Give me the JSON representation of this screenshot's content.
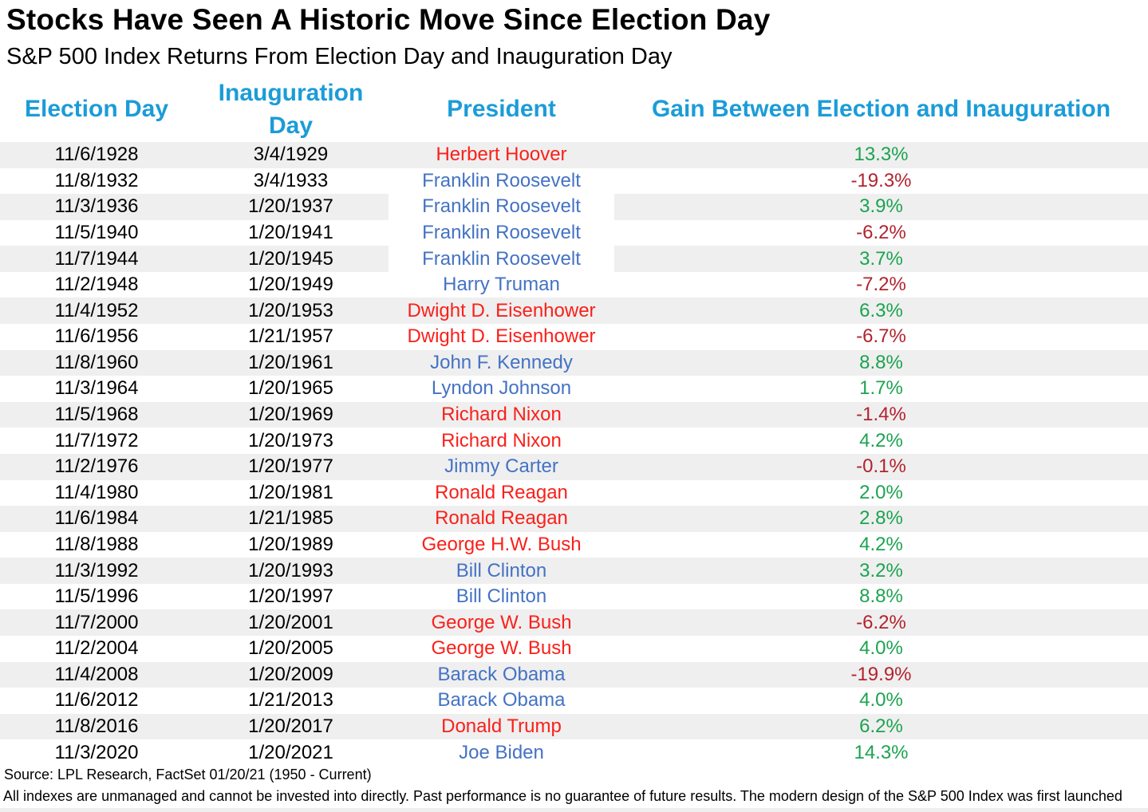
{
  "header": {
    "title": "Stocks Have Seen A Historic Move Since Election Day",
    "subtitle": "S&P 500 Index Returns From Election Day and Inauguration Day"
  },
  "footer": {
    "source": "Source: LPL Research, FactSet 01/20/21 (1950 - Current)",
    "disclaimer": "All indexes are unmanaged and cannot be invested into directly. Past performance is no guarantee of future results. The modern design of the S&P 500 Index was first launched"
  },
  "colors": {
    "header_blue": "#1B9CD8",
    "democrat_blue": "#4472C4",
    "republican_red": "#FA201A",
    "positive_green": "#1CA350",
    "negative_red": "#B2232E",
    "stripe_gray": "#EFEFEF"
  },
  "chart_data": {
    "type": "table",
    "title": "Stocks Have Seen A Historic Move Since Election Day",
    "subtitle": "S&P 500 Index Returns From Election Day and Inauguration Day",
    "columns": [
      "Election Day",
      "Inauguration Day",
      "President",
      "Gain Between Election and Inauguration"
    ],
    "legend_note": "President names colored red (Republican) or blue (Democrat); gains colored green (positive) or dark red (negative)",
    "rows": [
      {
        "election_day": "11/6/1928",
        "inauguration_day": "3/4/1929",
        "president": "Herbert Hoover",
        "name_color": "red",
        "gain_pct": 13.3,
        "gain_label": "13.3%"
      },
      {
        "election_day": "11/8/1932",
        "inauguration_day": "3/4/1933",
        "president": "Franklin Roosevelt",
        "name_color": "blue",
        "gain_pct": -19.3,
        "gain_label": "-19.3%"
      },
      {
        "election_day": "11/3/1936",
        "inauguration_day": "1/20/1937",
        "president": "Franklin Roosevelt",
        "name_color": "blue",
        "gain_pct": 3.9,
        "gain_label": "3.9%",
        "president_cell_white": true
      },
      {
        "election_day": "11/5/1940",
        "inauguration_day": "1/20/1941",
        "president": "Franklin Roosevelt",
        "name_color": "blue",
        "gain_pct": -6.2,
        "gain_label": "-6.2%"
      },
      {
        "election_day": "11/7/1944",
        "inauguration_day": "1/20/1945",
        "president": "Franklin Roosevelt",
        "name_color": "blue",
        "gain_pct": 3.7,
        "gain_label": "3.7%",
        "president_cell_white": true
      },
      {
        "election_day": "11/2/1948",
        "inauguration_day": "1/20/1949",
        "president": "Harry Truman",
        "name_color": "blue",
        "gain_pct": -7.2,
        "gain_label": "-7.2%"
      },
      {
        "election_day": "11/4/1952",
        "inauguration_day": "1/20/1953",
        "president": "Dwight D. Eisenhower",
        "name_color": "red",
        "gain_pct": 6.3,
        "gain_label": "6.3%"
      },
      {
        "election_day": "11/6/1956",
        "inauguration_day": "1/21/1957",
        "president": "Dwight D. Eisenhower",
        "name_color": "red",
        "gain_pct": -6.7,
        "gain_label": "-6.7%"
      },
      {
        "election_day": "11/8/1960",
        "inauguration_day": "1/20/1961",
        "president": "John F. Kennedy",
        "name_color": "blue",
        "gain_pct": 8.8,
        "gain_label": "8.8%"
      },
      {
        "election_day": "11/3/1964",
        "inauguration_day": "1/20/1965",
        "president": "Lyndon Johnson",
        "name_color": "blue",
        "gain_pct": 1.7,
        "gain_label": "1.7%"
      },
      {
        "election_day": "11/5/1968",
        "inauguration_day": "1/20/1969",
        "president": "Richard Nixon",
        "name_color": "red",
        "gain_pct": -1.4,
        "gain_label": "-1.4%"
      },
      {
        "election_day": "11/7/1972",
        "inauguration_day": "1/20/1973",
        "president": "Richard Nixon",
        "name_color": "red",
        "gain_pct": 4.2,
        "gain_label": "4.2%"
      },
      {
        "election_day": "11/2/1976",
        "inauguration_day": "1/20/1977",
        "president": "Jimmy Carter",
        "name_color": "blue",
        "gain_pct": -0.1,
        "gain_label": "-0.1%"
      },
      {
        "election_day": "11/4/1980",
        "inauguration_day": "1/20/1981",
        "president": "Ronald Reagan",
        "name_color": "red",
        "gain_pct": 2.0,
        "gain_label": "2.0%"
      },
      {
        "election_day": "11/6/1984",
        "inauguration_day": "1/21/1985",
        "president": "Ronald Reagan",
        "name_color": "red",
        "gain_pct": 2.8,
        "gain_label": "2.8%"
      },
      {
        "election_day": "11/8/1988",
        "inauguration_day": "1/20/1989",
        "president": "George H.W. Bush",
        "name_color": "red",
        "gain_pct": 4.2,
        "gain_label": "4.2%"
      },
      {
        "election_day": "11/3/1992",
        "inauguration_day": "1/20/1993",
        "president": "Bill Clinton",
        "name_color": "blue",
        "gain_pct": 3.2,
        "gain_label": "3.2%"
      },
      {
        "election_day": "11/5/1996",
        "inauguration_day": "1/20/1997",
        "president": "Bill Clinton",
        "name_color": "blue",
        "gain_pct": 8.8,
        "gain_label": "8.8%"
      },
      {
        "election_day": "11/7/2000",
        "inauguration_day": "1/20/2001",
        "president": "George W. Bush",
        "name_color": "red",
        "gain_pct": -6.2,
        "gain_label": "-6.2%"
      },
      {
        "election_day": "11/2/2004",
        "inauguration_day": "1/20/2005",
        "president": "George W. Bush",
        "name_color": "red",
        "gain_pct": 4.0,
        "gain_label": "4.0%"
      },
      {
        "election_day": "11/4/2008",
        "inauguration_day": "1/20/2009",
        "president": "Barack Obama",
        "name_color": "blue",
        "gain_pct": -19.9,
        "gain_label": "-19.9%"
      },
      {
        "election_day": "11/6/2012",
        "inauguration_day": "1/21/2013",
        "president": "Barack Obama",
        "name_color": "blue",
        "gain_pct": 4.0,
        "gain_label": "4.0%"
      },
      {
        "election_day": "11/8/2016",
        "inauguration_day": "1/20/2017",
        "president": "Donald Trump",
        "name_color": "red",
        "gain_pct": 6.2,
        "gain_label": "6.2%"
      },
      {
        "election_day": "11/3/2020",
        "inauguration_day": "1/20/2021",
        "president": "Joe Biden",
        "name_color": "blue",
        "gain_pct": 14.3,
        "gain_label": "14.3%"
      }
    ]
  }
}
